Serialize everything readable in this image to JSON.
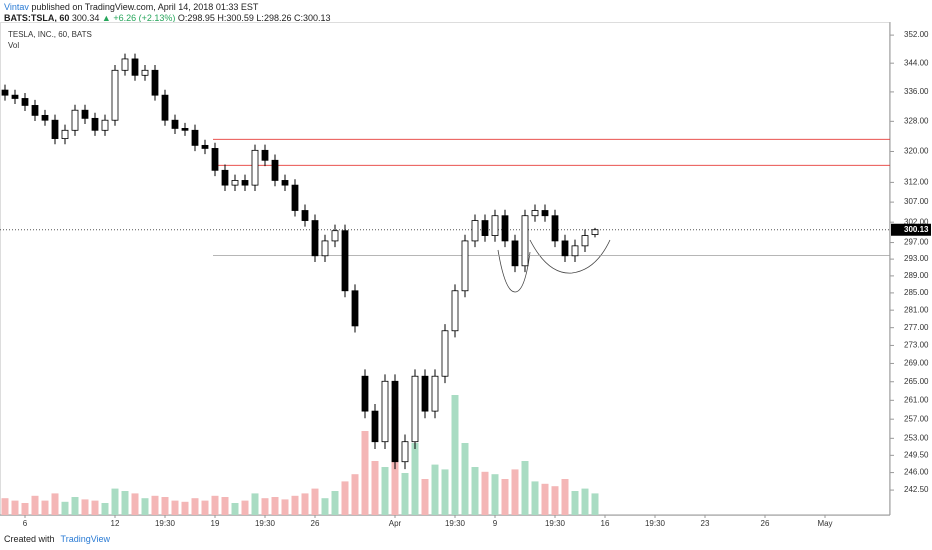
{
  "header": {
    "author": "Vintav",
    "published": " published on TradingView.com, April 14, 2018 01:33 EST",
    "symbol": "BATS:TSLA, 60",
    "price": "300.34",
    "change": "▲ +6.26 (+2.13%)",
    "ohlc": "O:298.95 H:300.59 L:298.26 C:300.13"
  },
  "footer": {
    "created": "Created with",
    "brand": "TradingView"
  },
  "chart_data": {
    "type": "candlestick",
    "title": "TESLA, INC., 60, BATS",
    "volume_label": "Vol",
    "log_scale": true,
    "ylim": [
      237.6,
      355.8
    ],
    "yticks": [
      {
        "value": 352,
        "label": "352.00"
      },
      {
        "value": 344,
        "label": "344.00"
      },
      {
        "value": 336,
        "label": "336.00"
      },
      {
        "value": 328,
        "label": "328.00"
      },
      {
        "value": 320,
        "label": "320.00"
      },
      {
        "value": 312,
        "label": "312.00"
      },
      {
        "value": 307,
        "label": "307.00"
      },
      {
        "value": 302,
        "label": "302.00"
      },
      {
        "value": 297,
        "label": "297.00"
      },
      {
        "value": 293,
        "label": "293.00"
      },
      {
        "value": 289,
        "label": "289.00"
      },
      {
        "value": 285,
        "label": "285.00"
      },
      {
        "value": 281,
        "label": "281.00"
      },
      {
        "value": 277,
        "label": "277.00"
      },
      {
        "value": 273,
        "label": "273.00"
      },
      {
        "value": 269,
        "label": "269.00"
      },
      {
        "value": 265,
        "label": "265.00"
      },
      {
        "value": 261,
        "label": "261.00"
      },
      {
        "value": 257,
        "label": "257.00"
      },
      {
        "value": 253,
        "label": "253.00"
      },
      {
        "value": 249.5,
        "label": "249.50"
      },
      {
        "value": 246,
        "label": "246.00"
      },
      {
        "value": 242.5,
        "label": "242.50"
      }
    ],
    "last_price": {
      "value": 300.13,
      "label": "300.13"
    },
    "hlines": [
      {
        "value": 323.2,
        "color": "#e53935"
      },
      {
        "value": 316.4,
        "color": "#e53935"
      },
      {
        "value": 293.9,
        "color": "#9e9e9e"
      }
    ],
    "up_color": "#ffffff",
    "down_color": "#000000",
    "vol_up_color": "#a9dcc3",
    "vol_down_color": "#f4b6b6",
    "categories": [
      null,
      null,
      "6",
      null,
      null,
      null,
      null,
      null,
      null,
      null,
      null,
      "12",
      null,
      null,
      null,
      null,
      "19:30",
      null,
      null,
      null,
      null,
      "19",
      null,
      null,
      null,
      null,
      "19:30",
      null,
      null,
      null,
      null,
      "26",
      null,
      null,
      null,
      null,
      null,
      null,
      null,
      "Apr",
      null,
      null,
      null,
      null,
      null,
      "19:30",
      null,
      null,
      null,
      "9",
      null,
      null,
      null,
      null,
      null,
      "19:30",
      null,
      null,
      null,
      null,
      "16",
      null,
      null,
      null,
      null,
      "19:30",
      null,
      null,
      null,
      null,
      "23",
      null,
      null,
      null,
      null,
      null,
      "26",
      null,
      null,
      null,
      null,
      null,
      "May",
      null,
      null,
      null,
      null,
      null,
      null
    ],
    "open": [
      336.5,
      335.1,
      334.2,
      332.3,
      329.6,
      328.3,
      323.4,
      325.6,
      331.0,
      328.8,
      325.6,
      328.3,
      342.0,
      345.2,
      340.6,
      342.0,
      335.1,
      328.3,
      326.1,
      325.6,
      321.6,
      320.8,
      315.1,
      311.3,
      312.5,
      311.3,
      320.3,
      317.7,
      312.5,
      311.3,
      304.9,
      302.4,
      293.8,
      297.4,
      299.9,
      285.5,
      266.2,
      258.7,
      252.3,
      265.1,
      248.2,
      252.3,
      266.2,
      258.7,
      266.2,
      276.3,
      285.5,
      297.4,
      302.4,
      298.7,
      303.6,
      297.4,
      291.4,
      303.6,
      304.9,
      303.6,
      297.4,
      293.8,
      296.2,
      298.95,
      null,
      null,
      null,
      null,
      null,
      null,
      null,
      null,
      null,
      null,
      null,
      null,
      null,
      null,
      null,
      null,
      null,
      null,
      null,
      null,
      null,
      null,
      null,
      null,
      null,
      null,
      null,
      null,
      null
    ],
    "high": [
      338.0,
      336.6,
      335.7,
      333.8,
      331.1,
      329.8,
      327.1,
      332.5,
      332.5,
      330.3,
      329.8,
      343.5,
      346.7,
      346.7,
      343.5,
      343.5,
      336.6,
      329.8,
      327.6,
      327.1,
      323.1,
      322.3,
      316.6,
      314.0,
      314.0,
      321.8,
      321.8,
      319.2,
      314.0,
      312.8,
      306.4,
      303.9,
      298.9,
      301.4,
      301.4,
      287.0,
      267.7,
      260.2,
      266.6,
      266.6,
      253.8,
      267.7,
      267.7,
      267.7,
      277.8,
      287.0,
      298.9,
      303.9,
      303.9,
      305.1,
      305.1,
      298.9,
      305.1,
      306.4,
      306.4,
      305.1,
      298.9,
      297.7,
      300.2,
      300.59,
      null,
      null,
      null,
      null,
      null,
      null,
      null,
      null,
      null,
      null,
      null,
      null,
      null,
      null,
      null,
      null,
      null,
      null,
      null,
      null,
      null,
      null,
      null,
      null,
      null,
      null,
      null,
      null,
      null
    ],
    "low": [
      333.6,
      332.7,
      330.8,
      328.1,
      326.8,
      321.9,
      321.9,
      324.1,
      327.3,
      324.1,
      324.1,
      326.8,
      340.5,
      339.1,
      339.1,
      333.6,
      326.8,
      324.6,
      324.1,
      320.1,
      319.3,
      313.6,
      309.8,
      309.8,
      309.8,
      309.8,
      316.2,
      311.0,
      309.8,
      303.4,
      300.9,
      292.3,
      292.3,
      295.9,
      284.0,
      275.9,
      257.2,
      250.8,
      250.8,
      246.7,
      246.7,
      250.8,
      257.2,
      257.2,
      264.7,
      274.8,
      284.0,
      295.9,
      297.2,
      297.2,
      295.9,
      289.9,
      289.9,
      302.1,
      302.1,
      295.9,
      292.3,
      292.3,
      294.7,
      298.26,
      null,
      null,
      null,
      null,
      null,
      null,
      null,
      null,
      null,
      null,
      null,
      null,
      null,
      null,
      null,
      null,
      null,
      null,
      null,
      null,
      null,
      null,
      null,
      null,
      null,
      null,
      null,
      null,
      null
    ],
    "close": [
      335.1,
      334.2,
      332.3,
      329.6,
      328.3,
      323.4,
      325.6,
      331.0,
      328.8,
      325.6,
      328.3,
      342.0,
      345.2,
      340.6,
      342.0,
      335.1,
      328.3,
      326.1,
      325.6,
      321.6,
      320.8,
      315.1,
      311.3,
      312.5,
      311.3,
      320.3,
      317.7,
      312.5,
      311.3,
      304.9,
      302.4,
      293.8,
      297.4,
      299.9,
      285.5,
      277.4,
      258.7,
      252.3,
      265.1,
      248.2,
      252.3,
      266.2,
      258.7,
      266.2,
      276.3,
      285.5,
      297.4,
      302.4,
      298.7,
      303.6,
      297.4,
      291.4,
      303.6,
      304.9,
      303.6,
      297.4,
      293.8,
      296.2,
      298.7,
      300.13,
      null,
      null,
      null,
      null,
      null,
      null,
      null,
      null,
      null,
      null,
      null,
      null,
      null,
      null,
      null,
      null,
      null,
      null,
      null,
      null,
      null,
      null,
      null,
      null,
      null,
      null,
      null,
      null,
      null
    ],
    "volume": [
      14,
      12,
      10,
      16,
      12,
      18,
      11,
      15,
      13,
      12,
      10,
      22,
      20,
      18,
      14,
      16,
      15,
      12,
      11,
      14,
      12,
      16,
      15,
      10,
      12,
      18,
      14,
      15,
      13,
      16,
      18,
      22,
      14,
      20,
      28,
      34,
      70,
      45,
      40,
      90,
      35,
      60,
      30,
      42,
      38,
      100,
      60,
      40,
      36,
      34,
      30,
      38,
      45,
      28,
      26,
      24,
      30,
      20,
      22,
      18,
      null,
      null,
      null,
      null,
      null,
      null,
      null,
      null,
      null,
      null,
      null,
      null,
      null,
      null,
      null,
      null,
      null,
      null,
      null,
      null,
      null,
      null,
      null,
      null,
      null,
      null,
      null,
      null,
      null
    ]
  }
}
